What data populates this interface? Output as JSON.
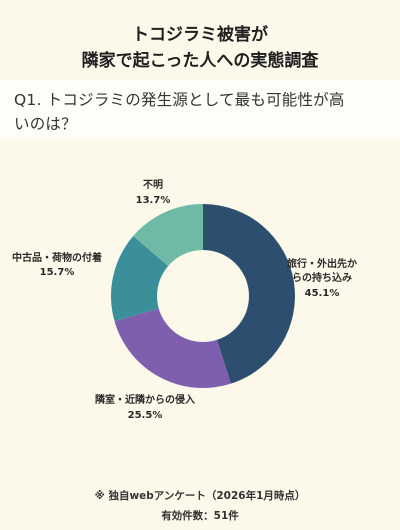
{
  "title": {
    "line1": "トコジラミ被害が",
    "line2": "隣家で起こった人への実態調査"
  },
  "question": {
    "line1": "Q1. トコジラミの発生源として最も可能性が高",
    "line2": "いのは？"
  },
  "chart_data": {
    "type": "pie",
    "donut": true,
    "slices": [
      {
        "label_lines": [
          "旅行・外出先か",
          "らの持ち込み"
        ],
        "percent_text": "45.1%",
        "value": 45.1,
        "color": "#2d4e6e"
      },
      {
        "label_lines": [
          "隣室・近隣からの侵入"
        ],
        "percent_text": "25.5%",
        "value": 25.5,
        "color": "#7e5fae"
      },
      {
        "label_lines": [
          "中古品・荷物の付着"
        ],
        "percent_text": "15.7%",
        "value": 15.7,
        "color": "#3a8f9a"
      },
      {
        "label_lines": [
          "不明"
        ],
        "percent_text": "13.7%",
        "value": 13.7,
        "color": "#6fbaa6"
      }
    ]
  },
  "footer": {
    "source": "※ 独自webアンケート（2026年1月時点）",
    "count": "有効件数：51件"
  }
}
